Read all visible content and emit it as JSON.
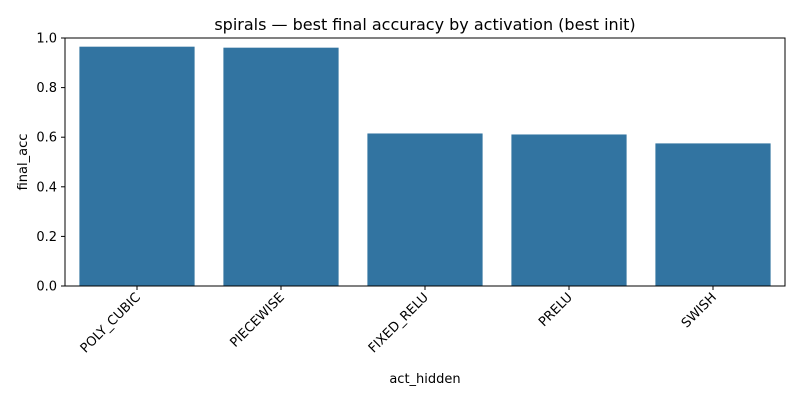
{
  "chart_data": {
    "type": "bar",
    "title": "spirals — best final accuracy by activation (best init)",
    "xlabel": "act_hidden",
    "ylabel": "final_acc",
    "categories": [
      "POLY_CUBIC",
      "PIECEWISE",
      "FIXED_RELU",
      "PRELU",
      "SWISH"
    ],
    "values": [
      0.965,
      0.961,
      0.615,
      0.611,
      0.575
    ],
    "ylim": [
      0,
      1.0
    ],
    "yticks": [
      "0.0",
      "0.2",
      "0.4",
      "0.6",
      "0.8",
      "1.0"
    ],
    "bar_color": "#3274a1",
    "grid": false,
    "legend": "none"
  }
}
